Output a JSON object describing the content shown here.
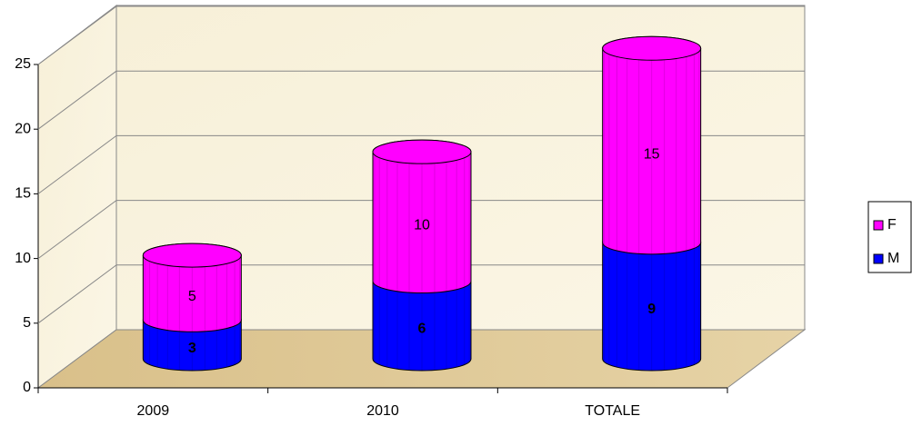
{
  "chart_data": {
    "type": "bar3d_stacked_cylinder",
    "categories": [
      "2009",
      "2010",
      "TOTALE"
    ],
    "series": [
      {
        "name": "M",
        "color": "#0000ff",
        "values": [
          3,
          6,
          9
        ]
      },
      {
        "name": "F",
        "color": "#ff00ff",
        "values": [
          5,
          10,
          15
        ]
      }
    ],
    "ylim": [
      0,
      25
    ],
    "yticks": [
      0,
      5,
      10,
      15,
      20,
      25
    ],
    "grid": true,
    "legend": "right"
  }
}
